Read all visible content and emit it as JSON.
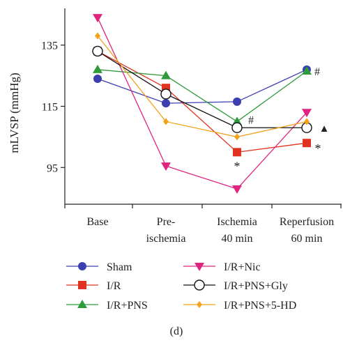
{
  "chart_data": {
    "type": "line",
    "ylabel": "mLVSP (mmHg)",
    "xlabel": "",
    "caption": "(d)",
    "ylim": [
      83,
      147
    ],
    "yticks": [
      95,
      115,
      135
    ],
    "categories": [
      {
        "lines": [
          "Base"
        ]
      },
      {
        "lines": [
          "Pre-",
          "ischemia"
        ]
      },
      {
        "lines": [
          "Ischemia",
          "40 min"
        ]
      },
      {
        "lines": [
          "Reperfusion",
          "60 min"
        ]
      }
    ],
    "series": [
      {
        "name": "Sham",
        "color": "#3b3fb0",
        "marker": "circle",
        "values": [
          124,
          116,
          116.5,
          127
        ]
      },
      {
        "name": "I/R",
        "color": "#e1321f",
        "marker": "square",
        "values": [
          133,
          121,
          100,
          103
        ]
      },
      {
        "name": "I/R+PNS",
        "color": "#2e9a3a",
        "marker": "triangle-up",
        "values": [
          127,
          125,
          110,
          126.5
        ]
      },
      {
        "name": "I/R+Nic",
        "color": "#e0237f",
        "marker": "triangle-down",
        "values": [
          144,
          95.5,
          88,
          113
        ]
      },
      {
        "name": "I/R+PNS+Gly",
        "color": "#111111",
        "marker": "open-circle",
        "values": [
          133,
          119,
          108,
          108
        ]
      },
      {
        "name": "I/R+PNS+5-HD",
        "color": "#f2a21b",
        "marker": "diamond",
        "values": [
          138,
          110,
          105,
          110
        ]
      }
    ],
    "annotations": [
      {
        "text": "#",
        "color": "#2e9a3a",
        "x": 3,
        "y": 126.5
      },
      {
        "text": "#",
        "color": "#2e9a3a",
        "x": 2,
        "y": 110
      },
      {
        "text": "*",
        "color": "#e1321f",
        "x": 2,
        "y": 100
      },
      {
        "text": "*",
        "color": "#e1321f",
        "x": 3,
        "y": 103
      },
      {
        "text": "▲",
        "color": "#111111",
        "x": 3,
        "y": 108
      }
    ]
  }
}
